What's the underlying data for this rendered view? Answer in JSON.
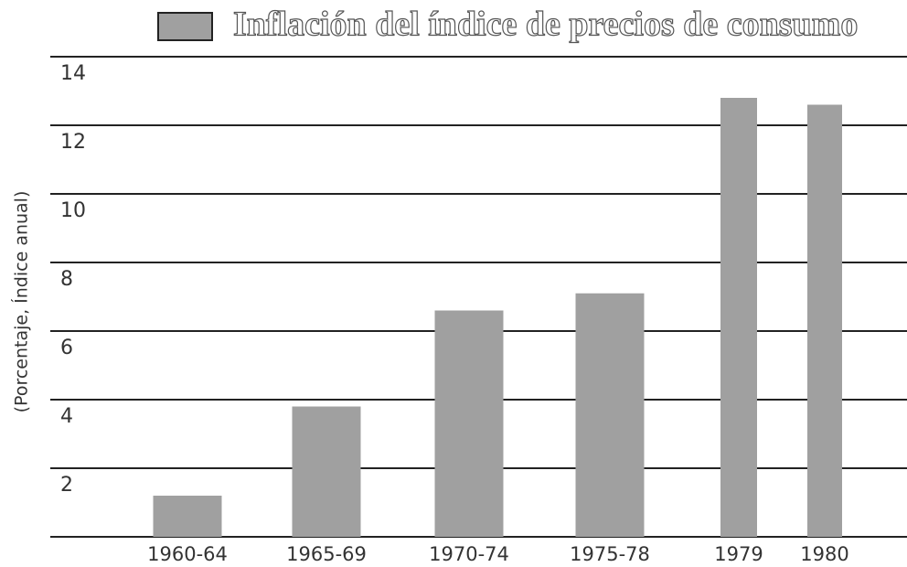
{
  "chart_data": {
    "type": "bar",
    "y_label": "(Porcentaje, Índice anual)",
    "categories": [
      "1960-64",
      "1965-69",
      "1970-74",
      "1975-78",
      "1979",
      "1980"
    ],
    "series": [
      {
        "name": "Inflación del índice de precios de consumo",
        "color": "#a0a0a0",
        "values": [
          1.2,
          3.8,
          6.6,
          7.1,
          12.8,
          12.6
        ]
      }
    ],
    "ylim": [
      0,
      14
    ],
    "yticks": [
      2,
      4,
      6,
      8,
      10,
      12,
      14
    ],
    "grid": true,
    "legend": "top"
  }
}
